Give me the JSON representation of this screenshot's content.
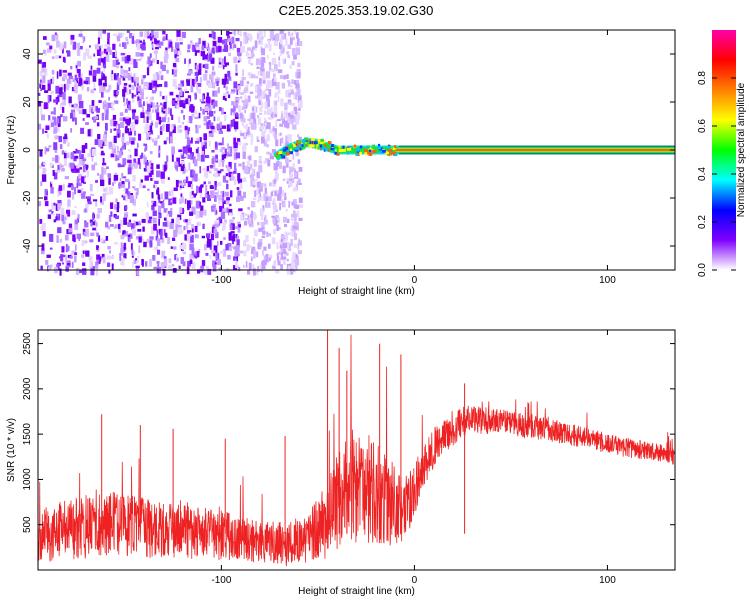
{
  "title": "C2E5.2025.353.19.02.G30",
  "chart_data": [
    {
      "type": "heatmap",
      "xlabel": "Height of straight line (km)",
      "ylabel": "Frequency (Hz)",
      "xlim": [
        -195,
        135
      ],
      "ylim": [
        -50,
        50
      ],
      "xticks": [
        -100,
        0,
        100
      ],
      "yticks": [
        -40,
        -20,
        0,
        20,
        40
      ],
      "noise_region_x": [
        -195,
        -65
      ],
      "signal_trace": {
        "x": [
          -72,
          -68,
          -64,
          -60,
          -56,
          -52,
          -48,
          -44,
          -40,
          -36,
          -32,
          -28,
          -24,
          -20,
          -16,
          -12,
          -8,
          -4,
          0,
          135
        ],
        "y": [
          -3,
          -1,
          1,
          2,
          3,
          3,
          2,
          1,
          0,
          0,
          0,
          0,
          0,
          0,
          0,
          0,
          0,
          0,
          0,
          0
        ]
      },
      "colorbar": {
        "label": "Normalized spectral amplitude",
        "range": [
          0,
          1
        ],
        "ticks": [
          "0.0",
          "0.2",
          "0.4",
          "0.6",
          "0.8"
        ],
        "colors": [
          "#ffffff",
          "#7f00ff",
          "#0000ff",
          "#00ffff",
          "#00ff00",
          "#ffff00",
          "#ff8000",
          "#ff0000",
          "#ff00aa"
        ]
      }
    },
    {
      "type": "line",
      "xlabel": "Height of straight line (km)",
      "ylabel": "SNR (10 * v/v)",
      "xlim": [
        -195,
        135
      ],
      "ylim": [
        0,
        2650
      ],
      "xticks": [
        -100,
        0,
        100
      ],
      "yticks": [
        500,
        1000,
        1500,
        2000,
        2500
      ],
      "color": "#ee2222",
      "series": [
        {
          "x": [
            -195,
            -185,
            -175,
            -165,
            -155,
            -145,
            -135,
            -125,
            -115,
            -105,
            -95,
            -85,
            -75,
            -65,
            -55,
            -45,
            -40,
            -35,
            -30,
            -25,
            -20,
            -15,
            -10,
            -5,
            0,
            5,
            10,
            20,
            25,
            30,
            40,
            50,
            60,
            70,
            80,
            90,
            100,
            110,
            120,
            130,
            135
          ],
          "values": [
            380,
            420,
            470,
            520,
            520,
            480,
            450,
            430,
            410,
            390,
            370,
            350,
            300,
            280,
            380,
            550,
            750,
            900,
            950,
            900,
            850,
            800,
            700,
            650,
            900,
            1150,
            1350,
            1550,
            1650,
            1650,
            1650,
            1620,
            1580,
            1550,
            1500,
            1450,
            1400,
            1350,
            1320,
            1280,
            1250
          ],
          "noise_amplitude": [
            300,
            320,
            350,
            380,
            360,
            340,
            320,
            300,
            290,
            280,
            270,
            260,
            250,
            240,
            300,
            420,
            520,
            600,
            650,
            620,
            580,
            520,
            450,
            380,
            300,
            250,
            220,
            180,
            170,
            160,
            150,
            140,
            130,
            130,
            120,
            120,
            110,
            110,
            100,
            100,
            100
          ]
        }
      ]
    }
  ]
}
